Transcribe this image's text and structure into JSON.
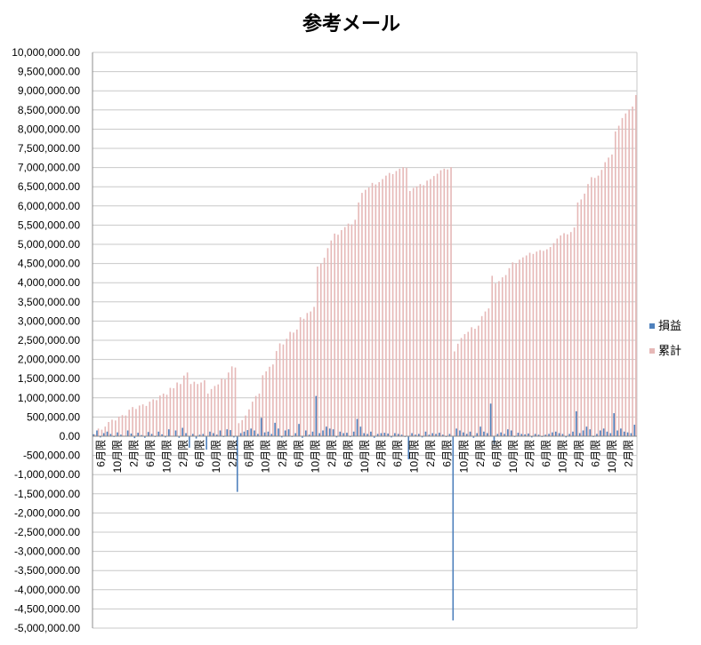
{
  "chart_data": {
    "type": "bar",
    "title": "参考メール",
    "xlabel": "",
    "ylabel": "",
    "ylim": [
      -5000000,
      10000000
    ],
    "ystep": 500000,
    "grid": true,
    "legend_position": "right",
    "yticks": [
      "10,000,000.00",
      "9,500,000.00",
      "9,000,000.00",
      "8,500,000.00",
      "8,000,000.00",
      "7,500,000.00",
      "7,000,000.00",
      "6,500,000.00",
      "6,000,000.00",
      "5,500,000.00",
      "5,000,000.00",
      "4,500,000.00",
      "4,000,000.00",
      "3,500,000.00",
      "3,000,000.00",
      "2,500,000.00",
      "2,000,000.00",
      "1,500,000.00",
      "1,000,000.00",
      "500,000.00",
      "0.00",
      "-500,000.00",
      "-1,000,000.00",
      "-1,500,000.00",
      "-2,000,000.00",
      "-2,500,000.00",
      "-3,000,000.00",
      "-3,500,000.00",
      "-4,000,000.00",
      "-4,500,000.00",
      "-5,000,000.00"
    ],
    "x_tick_labels": [
      "6月限",
      "10月限",
      "2月限",
      "6月限",
      "10月限",
      "2月限",
      "6月限",
      "10月限",
      "2月限",
      "6月限",
      "10月限",
      "2月限",
      "6月限",
      "10月限",
      "2月限",
      "6月限",
      "10月限",
      "2月限",
      "6月限",
      "10月限",
      "2月限",
      "6月限",
      "10月限",
      "2月限",
      "6月限",
      "10月限",
      "2月限",
      "6月限",
      "10月限",
      "2月限",
      "6月限",
      "10月限",
      "2月限"
    ],
    "series": [
      {
        "name": "損益",
        "color": "#4f81bd",
        "values": [
          50000,
          150000,
          -30000,
          80000,
          120000,
          60000,
          -20000,
          100000,
          40000,
          -10000,
          150000,
          70000,
          -50000,
          90000,
          30000,
          -40000,
          110000,
          60000,
          -20000,
          120000,
          50000,
          -30000,
          180000,
          -10000,
          150000,
          -40000,
          220000,
          80000,
          -300000,
          60000,
          -60000,
          40000,
          60000,
          -350000,
          120000,
          80000,
          40000,
          150000,
          -20000,
          180000,
          160000,
          -30000,
          -1450000,
          80000,
          120000,
          160000,
          200000,
          150000,
          60000,
          480000,
          100000,
          120000,
          60000,
          350000,
          200000,
          -30000,
          150000,
          180000,
          -20000,
          80000,
          320000,
          -40000,
          150000,
          40000,
          120000,
          1050000,
          80000,
          150000,
          250000,
          200000,
          180000,
          -30000,
          120000,
          80000,
          90000,
          -20000,
          120000,
          450000,
          250000,
          80000,
          60000,
          120000,
          -40000,
          60000,
          80000,
          90000,
          70000,
          -30000,
          80000,
          60000,
          40000,
          -20000,
          -600000,
          80000,
          40000,
          60000,
          -30000,
          120000,
          40000,
          80000,
          60000,
          90000,
          40000,
          -20000,
          60000,
          -4800000,
          200000,
          150000,
          100000,
          60000,
          120000,
          -40000,
          80000,
          250000,
          120000,
          80000,
          850000,
          -200000,
          60000,
          100000,
          60000,
          180000,
          150000,
          -20000,
          90000,
          60000,
          50000,
          70000,
          -30000,
          60000,
          40000,
          -20000,
          40000,
          60000,
          100000,
          120000,
          80000,
          60000,
          -30000,
          60000,
          120000,
          650000,
          80000,
          150000,
          250000,
          180000,
          -20000,
          60000,
          150000,
          200000,
          120000,
          80000,
          600000,
          150000,
          200000,
          120000,
          100000,
          80000,
          300000
        ]
      },
      {
        "name": "累計",
        "color": "#e6b8b7",
        "values": [
          50000,
          200000,
          170000,
          250000,
          370000,
          430000,
          410000,
          510000,
          550000,
          540000,
          690000,
          760000,
          710000,
          800000,
          830000,
          790000,
          900000,
          960000,
          940000,
          1060000,
          1110000,
          1080000,
          1260000,
          1250000,
          1400000,
          1360000,
          1580000,
          1660000,
          1360000,
          1420000,
          1360000,
          1400000,
          1460000,
          1110000,
          1230000,
          1310000,
          1350000,
          1500000,
          1480000,
          1660000,
          1820000,
          1790000,
          340000,
          420000,
          540000,
          700000,
          900000,
          1050000,
          1110000,
          1590000,
          1690000,
          1810000,
          1870000,
          2220000,
          2420000,
          2390000,
          2540000,
          2720000,
          2700000,
          2780000,
          3100000,
          3060000,
          3210000,
          3250000,
          3370000,
          4420000,
          4500000,
          4650000,
          4900000,
          5100000,
          5280000,
          5250000,
          5370000,
          5450000,
          5540000,
          5520000,
          5640000,
          6090000,
          6340000,
          6420000,
          6480000,
          6600000,
          6560000,
          6620000,
          6700000,
          6790000,
          6860000,
          6830000,
          6910000,
          6970000,
          7010000,
          6990000,
          6390000,
          6470000,
          6510000,
          6570000,
          6540000,
          6660000,
          6700000,
          6780000,
          6840000,
          6930000,
          6970000,
          6950000,
          7010000,
          2210000,
          2410000,
          2560000,
          2660000,
          2720000,
          2840000,
          2800000,
          2880000,
          3130000,
          3250000,
          3330000,
          4180000,
          3980000,
          4040000,
          4140000,
          4200000,
          4380000,
          4530000,
          4510000,
          4600000,
          4660000,
          4710000,
          4780000,
          4750000,
          4810000,
          4850000,
          4830000,
          4870000,
          4930000,
          5030000,
          5150000,
          5230000,
          5290000,
          5260000,
          5320000,
          5440000,
          6090000,
          6170000,
          6320000,
          6570000,
          6750000,
          6730000,
          6790000,
          6940000,
          7140000,
          7260000,
          7340000,
          7940000,
          8090000,
          8290000,
          8410000,
          8510000,
          8590000,
          8890000
        ]
      }
    ]
  }
}
